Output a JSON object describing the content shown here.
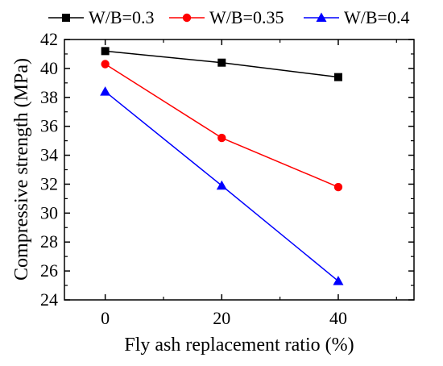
{
  "chart_data": {
    "type": "line",
    "x": [
      0,
      20,
      40
    ],
    "xlabel": "Fly ash replacement ratio (%)",
    "ylabel": "Compressive strength (MPa)",
    "xticks": [
      "0",
      "20",
      "40"
    ],
    "yticks": [
      "24",
      "26",
      "28",
      "30",
      "32",
      "34",
      "36",
      "38",
      "40",
      "42"
    ],
    "xlim": [
      -7,
      53
    ],
    "ylim": [
      24,
      42
    ],
    "grid": false,
    "legend_position": "top",
    "series": [
      {
        "name": "W/B=0.3",
        "values": [
          41.2,
          40.4,
          39.4
        ],
        "color": "#000000",
        "marker": "square"
      },
      {
        "name": "W/B=0.35",
        "values": [
          40.3,
          35.2,
          31.8
        ],
        "color": "#ff0000",
        "marker": "circle"
      },
      {
        "name": "W/B=0.4",
        "values": [
          38.4,
          31.9,
          25.3
        ],
        "color": "#0000ff",
        "marker": "triangle"
      }
    ]
  }
}
